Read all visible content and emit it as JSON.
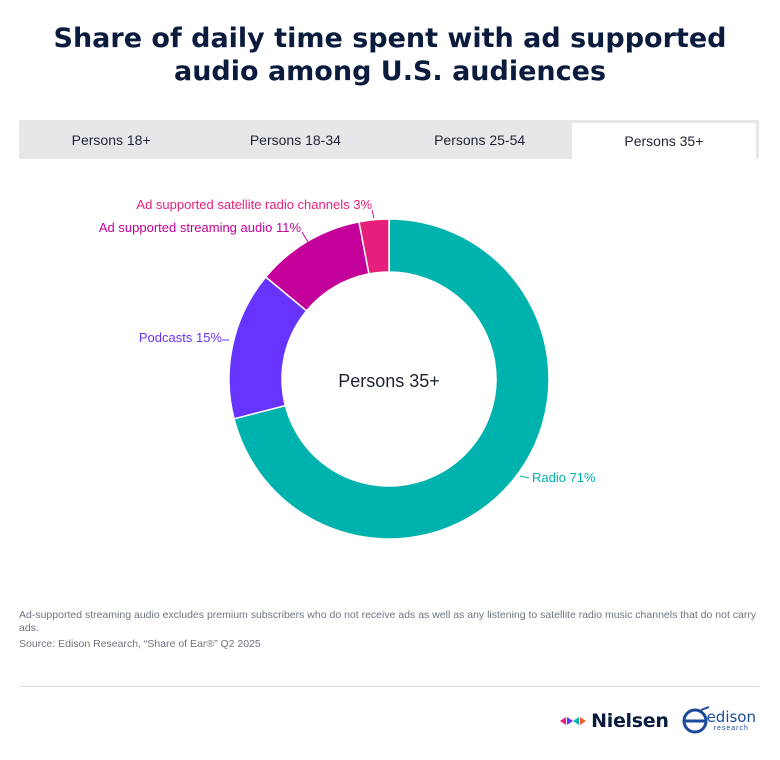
{
  "title": "Share of daily time spent with ad supported audio among U.S. audiences",
  "tabs": [
    {
      "label": "Persons 18+"
    },
    {
      "label": "Persons 18-34"
    },
    {
      "label": "Persons 25-54"
    },
    {
      "label": "Persons 35+"
    }
  ],
  "active_tab": "Persons 35+",
  "chart_data": {
    "type": "pie",
    "center_label": "Persons 35+",
    "slices": [
      {
        "name": "Radio",
        "value": 71,
        "label": "Radio 71%",
        "color": "#00b2ad"
      },
      {
        "name": "Podcasts",
        "value": 15,
        "label": "Podcasts 15%",
        "color": "#6633ff"
      },
      {
        "name": "Ad supported streaming audio",
        "value": 11,
        "label": "Ad supported streaming audio 11%",
        "color": "#c4009a"
      },
      {
        "name": "Ad supported satellite radio channels",
        "value": 3,
        "label": "Ad supported satellite radio channels 3%",
        "color": "#e6207a"
      }
    ]
  },
  "footnote": "Ad-supported streaming audio excludes premium subscribers who do not receive ads as well as any listening to satellite radio music channels that do not carry ads.",
  "source": "Source: Edison Research, “Share of Ear®” Q2 2025",
  "logos": {
    "nielsen": "Nielsen",
    "edison": "edison",
    "edison_sub": "research"
  }
}
